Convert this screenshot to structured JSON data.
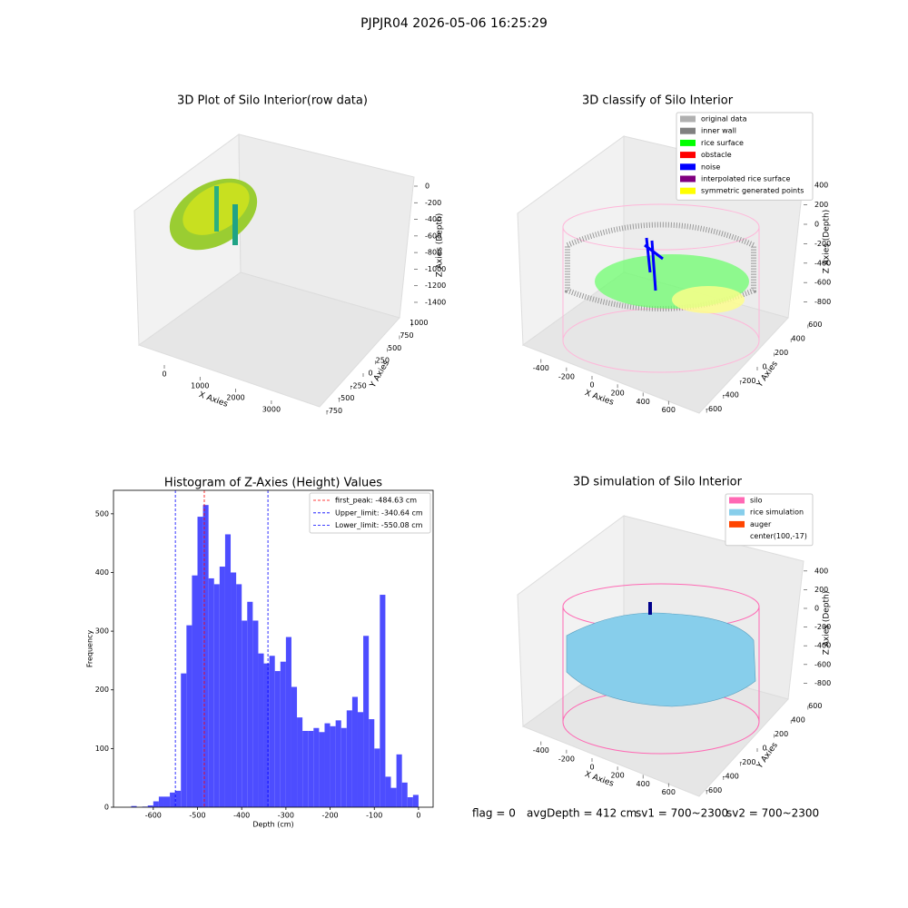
{
  "title": "PJPJR04 2026-05-06 16:25:29",
  "status": [
    "flag = 0",
    "avgDepth = 412 cm",
    "sv1 = 700~2300",
    "sv2 = 700~2300"
  ],
  "chart_data": [
    {
      "type": "scatter3d",
      "title": "3D Plot of Silo Interior(row data)",
      "xlabel": "X Axies",
      "ylabel": "Y Axies",
      "zlabel": "Z Axies (Depth)",
      "xlim": [
        -700,
        3700
      ],
      "ylim": [
        -800,
        1100
      ],
      "zlim": [
        -1500,
        100
      ],
      "xticks": [
        0,
        1000,
        2000,
        3000
      ],
      "yticks": [
        -750,
        -500,
        -250,
        0,
        250,
        500,
        750,
        1000
      ],
      "zticks": [
        0,
        -200,
        -400,
        -600,
        -800,
        -1000,
        -1200,
        -1400
      ]
    },
    {
      "type": "scatter3d",
      "title": "3D classify of Silo Interior",
      "xlabel": "X Axies",
      "ylabel": "Y Axies",
      "zlabel": "Z Axies (Depth)",
      "xlim": [
        -550,
        750
      ],
      "ylim": [
        -700,
        700
      ],
      "zlim": [
        -900,
        450
      ],
      "xticks": [
        -400,
        -200,
        0,
        200,
        400,
        600
      ],
      "yticks": [
        -600,
        -400,
        -200,
        0,
        200,
        400,
        600
      ],
      "zticks": [
        400,
        200,
        0,
        -200,
        -400,
        -600,
        -800
      ],
      "legend": [
        {
          "name": "original data",
          "color": "#b0b0b0"
        },
        {
          "name": "inner wall",
          "color": "#808080"
        },
        {
          "name": "rice surface",
          "color": "#00ff00"
        },
        {
          "name": "obstacle",
          "color": "#ff0000"
        },
        {
          "name": "noise",
          "color": "#0000ff"
        },
        {
          "name": "interpolated rice surface",
          "color": "#800080"
        },
        {
          "name": "symmetric generated points",
          "color": "#ffff00"
        }
      ]
    },
    {
      "type": "histogram",
      "title": "Histogram of Z-Axies (Height) Values",
      "xlabel": "Depth (cm)",
      "ylabel": "Frequency",
      "color": "#4d4dff",
      "xlim": [
        -690,
        33
      ],
      "ylim": [
        0,
        540
      ],
      "xticks": [
        -600,
        -500,
        -400,
        -300,
        -200,
        -100,
        0
      ],
      "yticks": [
        0,
        100,
        200,
        300,
        400,
        500
      ],
      "bins": [
        -650,
        -637.5,
        -625,
        -612.5,
        -600,
        -587.5,
        -575,
        -562.5,
        -550,
        -537.5,
        -525,
        -512.5,
        -500,
        -487.5,
        -475,
        -462.5,
        -450,
        -437.5,
        -425,
        -412.5,
        -400,
        -387.5,
        -375,
        -362.5,
        -350,
        -337.5,
        -325,
        -312.5,
        -300,
        -287.5,
        -275,
        -262.5,
        -250,
        -237.5,
        -225,
        -212.5,
        -200,
        -187.5,
        -175,
        -162.5,
        -150,
        -137.5,
        -125,
        -112.5,
        -100,
        -87.5,
        -75,
        -62.5,
        -50,
        -37.5,
        -25,
        -12.5,
        0
      ],
      "counts": [
        2,
        0,
        1,
        3,
        10,
        18,
        18,
        25,
        28,
        228,
        310,
        395,
        495,
        515,
        390,
        380,
        410,
        465,
        400,
        380,
        318,
        350,
        318,
        262,
        245,
        258,
        232,
        248,
        290,
        205,
        153,
        130,
        130,
        135,
        128,
        143,
        138,
        148,
        135,
        165,
        188,
        162,
        292,
        150,
        100,
        362,
        52,
        33,
        90,
        42,
        17,
        21
      ],
      "lines": [
        {
          "name": "first_peak: -484.63 cm",
          "value": -484.63,
          "color": "#ff0000"
        },
        {
          "name": "Upper_limit: -340.64 cm",
          "value": -340.64,
          "color": "#0000ff"
        },
        {
          "name": "Lower_limit: -550.08 cm",
          "value": -550.08,
          "color": "#0000ff"
        }
      ]
    },
    {
      "type": "surface3d",
      "title": "3D simulation of Silo Interior",
      "xlabel": "X Axies",
      "ylabel": "Y Axies",
      "zlabel": "Z Axies (Depth)",
      "xlim": [
        -550,
        750
      ],
      "ylim": [
        -700,
        700
      ],
      "zlim": [
        -900,
        450
      ],
      "xticks": [
        -400,
        -200,
        0,
        200,
        400,
        600
      ],
      "yticks": [
        -600,
        -400,
        -200,
        0,
        200,
        400,
        600
      ],
      "zticks": [
        400,
        200,
        0,
        -200,
        -400,
        -600,
        -800
      ],
      "legend": [
        {
          "name": "silo",
          "color": "#ff69b4"
        },
        {
          "name": "rice simulation",
          "color": "#87ceeb"
        },
        {
          "name": "auger",
          "color": "#ff4500"
        },
        {
          "name": "center(100,-17)"
        }
      ]
    }
  ]
}
